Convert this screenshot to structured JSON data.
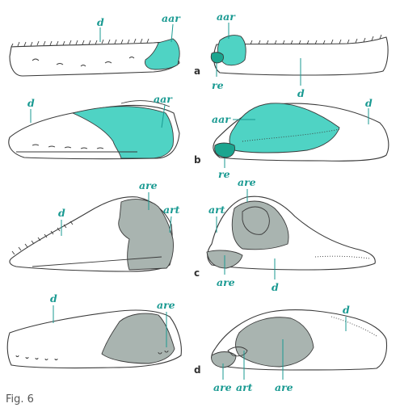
{
  "figure_caption": "Fig. 6",
  "colors": {
    "label": "#1a9a92",
    "articular_bone_fill": "#4fd3c4",
    "retroarticular_fill": "#1ba58f",
    "angular_fill": "#a9b4b0",
    "bone_outline": "#3a3a3a"
  },
  "rows": [
    {
      "letter": "a",
      "labels": [
        "d",
        "aar",
        "aar",
        "re",
        "d"
      ]
    },
    {
      "letter": "b",
      "labels": [
        "d",
        "aar",
        "aar",
        "re",
        "d"
      ]
    },
    {
      "letter": "c",
      "labels": [
        "d",
        "are",
        "art",
        "are",
        "art",
        "are",
        "d"
      ]
    },
    {
      "letter": "d",
      "labels": [
        "d",
        "are",
        "d",
        "are",
        "art",
        "are"
      ]
    }
  ]
}
